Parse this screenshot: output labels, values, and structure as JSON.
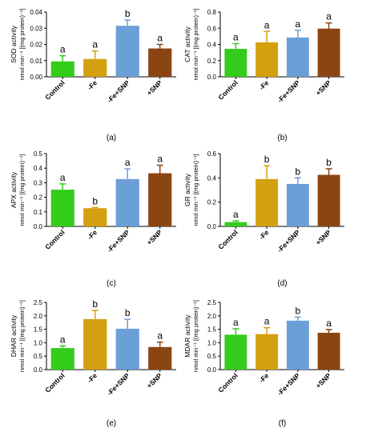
{
  "chart_data": [
    {
      "type": "bar",
      "panel_label": "(a)",
      "ylabel_line1": "SOD activity",
      "ylabel_line2": "nmol min⁻¹ [(mg protein)⁻¹]",
      "ylim": [
        0,
        0.04
      ],
      "yticks": [
        "0.00",
        "0.01",
        "0.02",
        "0.03",
        "0.04"
      ],
      "categories": [
        "Control",
        "-Fe",
        "-Fe+SNP",
        "+SNP"
      ],
      "values": [
        0.0095,
        0.011,
        0.0315,
        0.0175
      ],
      "errors": [
        0.0035,
        0.005,
        0.0035,
        0.0025
      ],
      "letters": [
        "a",
        "a",
        "b",
        "a"
      ]
    },
    {
      "type": "bar",
      "panel_label": "(b)",
      "ylabel_line1": "CAT activity",
      "ylabel_line2": "nmol min⁻¹ [(mg protein)⁻¹]",
      "ylim": [
        0,
        0.8
      ],
      "yticks": [
        "0.0",
        "0.2",
        "0.4",
        "0.6",
        "0.8"
      ],
      "categories": [
        "Control",
        "-Fe",
        "-Fe+SNP",
        "+SNP"
      ],
      "values": [
        0.345,
        0.425,
        0.485,
        0.595
      ],
      "errors": [
        0.065,
        0.135,
        0.09,
        0.07
      ],
      "letters": [
        "a",
        "a",
        "a",
        "a"
      ]
    },
    {
      "type": "bar",
      "panel_label": "(c)",
      "ylabel_line1": "APX activity",
      "ylabel_line2": "nmol min⁻¹ [(mg protein)⁻¹]",
      "ylim": [
        0,
        0.5
      ],
      "yticks": [
        "0.0",
        "0.1",
        "0.2",
        "0.3",
        "0.4",
        "0.5"
      ],
      "categories": [
        "Control",
        "-Fe",
        "-Fe+SNP",
        "+SNP"
      ],
      "values": [
        0.252,
        0.125,
        0.325,
        0.365
      ],
      "errors": [
        0.04,
        0.005,
        0.07,
        0.055
      ],
      "letters": [
        "a",
        "b",
        "a",
        "a"
      ]
    },
    {
      "type": "bar",
      "panel_label": "(d)",
      "ylabel_line1": "GR activity",
      "ylabel_line2": "nmol min⁻¹ [(mg protein)⁻¹]",
      "ylim": [
        0,
        0.6
      ],
      "yticks": [
        "0.0",
        "0.2",
        "0.4",
        "0.6"
      ],
      "categories": [
        "Control",
        "-Fe",
        "-Fe+SNP",
        "+SNP"
      ],
      "values": [
        0.035,
        0.39,
        0.35,
        0.425
      ],
      "errors": [
        0.01,
        0.11,
        0.05,
        0.05
      ],
      "letters": [
        "a",
        "b",
        "b",
        "b"
      ]
    },
    {
      "type": "bar",
      "panel_label": "(e)",
      "ylabel_line1": "DHAR activity",
      "ylabel_line2": "nmol min⁻¹ [(mg protein)⁻¹]",
      "ylim": [
        0,
        2.5
      ],
      "yticks": [
        "0.0",
        "0.5",
        "1.0",
        "1.5",
        "2.0",
        "2.5"
      ],
      "categories": [
        "Control",
        "-Fe",
        "-Fe+SNP",
        "+SNP"
      ],
      "values": [
        0.8,
        1.88,
        1.52,
        0.84
      ],
      "errors": [
        0.08,
        0.32,
        0.35,
        0.18
      ],
      "letters": [
        "a",
        "b",
        "b",
        "a"
      ]
    },
    {
      "type": "bar",
      "panel_label": "(f)",
      "ylabel_line1": "MDAR activity",
      "ylabel_line2": "nmol min⁻¹ [(mg protein)⁻¹]",
      "ylim": [
        0,
        2.5
      ],
      "yticks": [
        "0.0",
        "0.5",
        "1.0",
        "1.5",
        "2.0",
        "2.5"
      ],
      "categories": [
        "Control",
        "-Fe",
        "-Fe+SNP",
        "+SNP"
      ],
      "values": [
        1.3,
        1.32,
        1.82,
        1.37
      ],
      "errors": [
        0.22,
        0.24,
        0.13,
        0.12
      ],
      "letters": [
        "a",
        "a",
        "b",
        "a"
      ]
    }
  ],
  "colors": {
    "Control": "#33cc1a",
    "-Fe": "#d4a010",
    "-Fe+SNP": "#6b9fd8",
    "+SNP": "#8b4513"
  }
}
